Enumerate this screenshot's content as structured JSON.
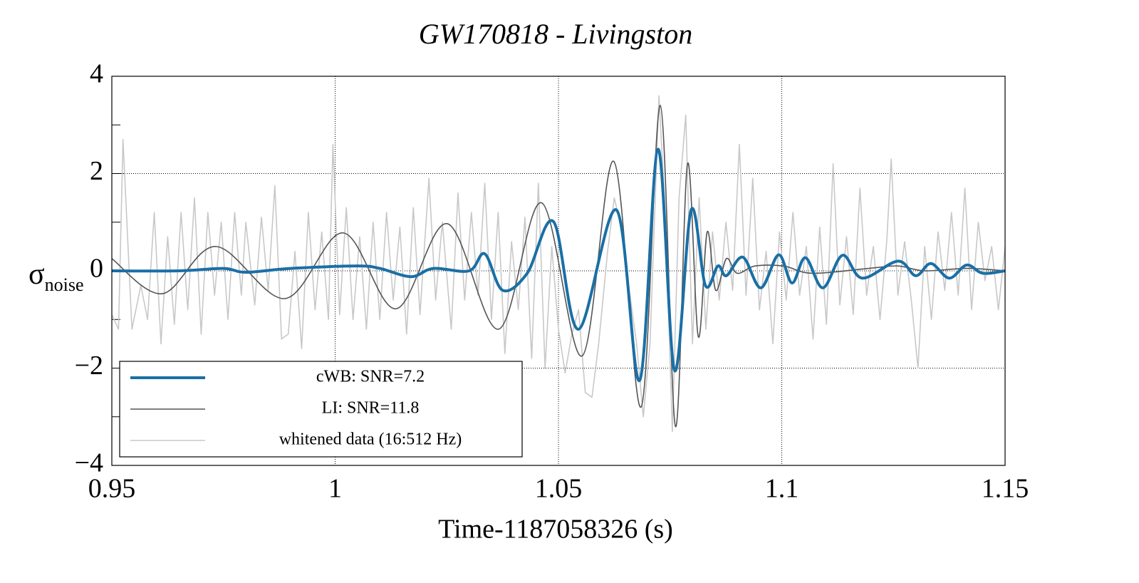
{
  "chart_data": {
    "type": "line",
    "title": "GW170818 - Livingston",
    "xlabel": "Time-1187058326 (s)",
    "ylabel": {
      "symbol": "σ",
      "subscript": "noise"
    },
    "xlim": [
      0.95,
      1.15
    ],
    "xticks": [
      0.95,
      1,
      1.05,
      1.1,
      1.15
    ],
    "ylim": [
      -4,
      4
    ],
    "yticks": [
      {
        "value": -4,
        "label": "−4"
      },
      {
        "value": -2,
        "label": "−2"
      },
      0,
      2,
      4
    ],
    "yminor_ticks": [
      -3,
      -1,
      1,
      3
    ],
    "grid": true,
    "legend": "lower left",
    "series": [
      {
        "name": "whitened data (16:512 Hz)",
        "color": "#c8c8c8",
        "width": 1.6,
        "x": [
          0.95,
          0.9515,
          0.9525,
          0.9545,
          0.9565,
          0.958,
          0.9595,
          0.961,
          0.9625,
          0.964,
          0.9655,
          0.967,
          0.9685,
          0.97,
          0.9715,
          0.973,
          0.9745,
          0.976,
          0.9775,
          0.979,
          0.98,
          0.982,
          0.9835,
          0.985,
          0.9865,
          0.988,
          0.9895,
          0.991,
          0.9925,
          0.994,
          0.9955,
          0.997,
          0.9985,
          0.9995,
          1.001,
          1.0025,
          1.004,
          1.0055,
          1.007,
          1.0085,
          1.01,
          1.0115,
          1.013,
          1.0145,
          1.016,
          1.0175,
          1.019,
          1.021,
          1.0225,
          1.024,
          1.026,
          1.0275,
          1.029,
          1.0305,
          1.032,
          1.0335,
          1.035,
          1.0365,
          1.038,
          1.0395,
          1.041,
          1.0425,
          1.044,
          1.0455,
          1.047,
          1.0485,
          1.05,
          1.0515,
          1.053,
          1.0545,
          1.056,
          1.0575,
          1.059,
          1.061,
          1.0625,
          1.064,
          1.066,
          1.0675,
          1.069,
          1.0705,
          1.0725,
          1.074,
          1.0755,
          1.077,
          1.0785,
          1.08,
          1.0815,
          1.083,
          1.0845,
          1.086,
          1.0875,
          1.089,
          1.0905,
          1.092,
          1.0935,
          1.095,
          1.0965,
          1.098,
          1.0995,
          1.101,
          1.1025,
          1.104,
          1.1055,
          1.107,
          1.1085,
          1.11,
          1.1115,
          1.113,
          1.1145,
          1.116,
          1.1175,
          1.119,
          1.1205,
          1.122,
          1.1235,
          1.1245,
          1.126,
          1.1275,
          1.129,
          1.1305,
          1.132,
          1.1335,
          1.135,
          1.1365,
          1.138,
          1.1395,
          1.141,
          1.1425,
          1.144,
          1.1455,
          1.147,
          1.1485,
          1.15
        ],
        "values": [
          -0.9,
          -1.2,
          2.7,
          -1.2,
          -0.3,
          -1.0,
          1.2,
          -1.5,
          0.7,
          -1.1,
          1.2,
          -0.8,
          1.5,
          -1.3,
          1.2,
          -0.5,
          1.0,
          -1.0,
          1.2,
          -0.5,
          1.0,
          -0.7,
          1.1,
          -0.4,
          1.75,
          -1.4,
          -1.3,
          0.4,
          -1.6,
          1.2,
          -0.8,
          0.8,
          -1.0,
          2.6,
          -0.9,
          1.3,
          -1.0,
          0.7,
          -1.2,
          1.0,
          -1.0,
          1.2,
          -0.6,
          0.9,
          -1.3,
          1.3,
          -0.9,
          1.9,
          -0.6,
          1.0,
          -1.2,
          1.6,
          -0.6,
          1.2,
          -0.5,
          1.8,
          -1.0,
          1.2,
          -1.7,
          0.6,
          -0.8,
          1.1,
          -1.8,
          1.8,
          -2.0,
          0.5,
          -1.2,
          -2.1,
          -1.3,
          -0.8,
          -2.5,
          -2.6,
          -1.5,
          0.4,
          1.5,
          0.9,
          -0.5,
          -1.5,
          -3.0,
          -1.5,
          3.6,
          1.0,
          -3.3,
          1.5,
          3.2,
          -1.5,
          1.5,
          -1.2,
          0.8,
          -0.6,
          1.0,
          -0.4,
          2.6,
          -0.5,
          1.9,
          -0.8,
          0.4,
          -1.5,
          0.8,
          -0.6,
          1.2,
          -0.5,
          0.5,
          -1.4,
          0.9,
          -1.1,
          2.2,
          -0.7,
          0.7,
          -0.9,
          1.7,
          -0.5,
          0.5,
          -1.0,
          0.6,
          2.3,
          -0.5,
          0.6,
          -0.6,
          -2.0,
          0.5,
          -1.0,
          0.8,
          -0.4,
          1.2,
          -0.5,
          1.7,
          -0.8,
          1.0,
          -0.2,
          0.5,
          -0.8,
          0.5
        ]
      },
      {
        "name": "LI: SNR=11.8",
        "color": "#555555",
        "width": 1.6,
        "x": [
          0.95,
          0.9613,
          0.9733,
          0.9888,
          1.0018,
          1.0136,
          1.0251,
          1.0366,
          1.0462,
          1.0553,
          1.0624,
          1.0685,
          1.0728,
          1.0762,
          1.0789,
          1.0813,
          1.0833,
          1.0852,
          1.0876,
          1.09,
          1.094,
          1.1004,
          1.1068,
          1.1195,
          1.126,
          1.132,
          1.1414,
          1.15
        ],
        "values": [
          0.25,
          -0.47,
          0.5,
          -0.57,
          0.78,
          -0.78,
          0.97,
          -1.2,
          1.4,
          -1.75,
          2.25,
          -2.8,
          3.4,
          -3.2,
          2.2,
          -1.35,
          0.8,
          -0.4,
          0.25,
          -0.05,
          0.1,
          0.1,
          -0.05,
          0.05,
          0.1,
          0.0,
          0.05,
          0
        ]
      },
      {
        "name": "cWB: SNR=7.2",
        "color": "#1a6fa6",
        "width": 4,
        "x": [
          0.95,
          0.965,
          0.975,
          0.98,
          0.99,
          1.005,
          1.01,
          1.017,
          1.022,
          1.03,
          1.0335,
          1.0375,
          1.043,
          1.0489,
          1.0545,
          1.063,
          1.0682,
          1.0723,
          1.076,
          1.0797,
          1.0829,
          1.0857,
          1.0876,
          1.0913,
          1.0953,
          1.0993,
          1.1023,
          1.1053,
          1.1092,
          1.1136,
          1.118,
          1.126,
          1.13,
          1.1334,
          1.1375,
          1.1414,
          1.145,
          1.15
        ],
        "values": [
          0,
          0,
          0.05,
          -0.03,
          0.05,
          0.1,
          0.05,
          -0.12,
          0.05,
          0,
          0.35,
          -0.4,
          -0.05,
          1.01,
          -1.2,
          1.25,
          -2.25,
          2.5,
          -2.05,
          1.25,
          -0.3,
          0.1,
          -0.1,
          0.28,
          -0.35,
          0.33,
          -0.25,
          0.27,
          -0.35,
          0.32,
          -0.15,
          0.2,
          -0.1,
          0.15,
          -0.15,
          0.12,
          -0.05,
          0
        ]
      }
    ]
  }
}
